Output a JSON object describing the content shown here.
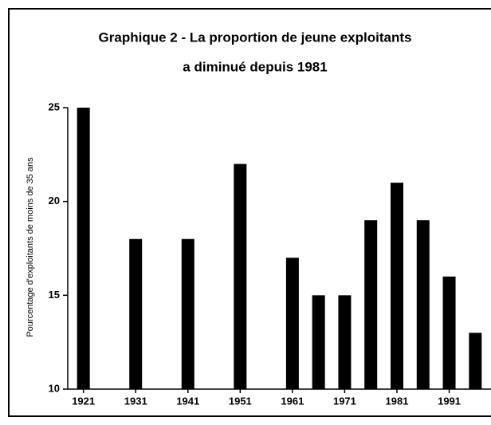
{
  "chart_data": {
    "type": "bar",
    "title": [
      "Graphique 2 - La proportion de jeune exploitants",
      "a diminué depuis 1981"
    ],
    "y_label": "Pourcentage d'exploitants de moins de 35 ans",
    "x": [
      1921,
      1931,
      1941,
      1951,
      1961,
      1966,
      1971,
      1976,
      1981,
      1986,
      1991,
      1996
    ],
    "values": [
      25,
      18,
      18,
      22,
      17,
      15,
      15,
      19,
      21,
      19,
      16,
      13
    ],
    "color": "#000000",
    "xlim": [
      1918,
      1999
    ],
    "xticks": [
      1921,
      1931,
      1941,
      1951,
      1961,
      1971,
      1981,
      1991
    ],
    "ylim": [
      10,
      25
    ],
    "yticks": [
      10,
      15,
      20,
      25
    ]
  }
}
